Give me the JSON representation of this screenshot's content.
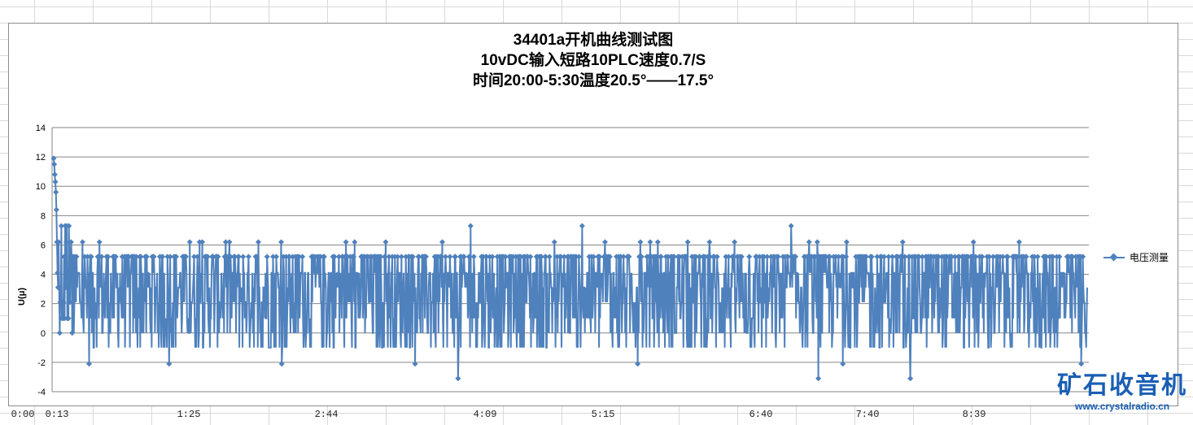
{
  "chart_data": {
    "type": "line",
    "title_lines": [
      "34401a开机曲线测试图",
      "10vDC输入短路10PLC速度0.7/S",
      "时间20:00-5:30温度20.5°——17.5°"
    ],
    "ylabel": "U(μ)",
    "xlabel": "",
    "ylim": [
      -4,
      14
    ],
    "yticks": [
      "14",
      "12",
      "10",
      "8",
      "6",
      "4",
      "2",
      "0",
      "-2",
      "-4"
    ],
    "xtick_labels": [
      "0:00",
      "0:13",
      "1:25",
      "2:44",
      "4:09",
      "5:15",
      "6:40",
      "7:40",
      "8:39"
    ],
    "grid": "horizontal",
    "legend": "right",
    "series": [
      {
        "name": "电压测量",
        "color": "#4f81bd",
        "description_values": {
          "start_peak": 11.9,
          "typical_low": -1,
          "typical_high": 5.2,
          "occasional_min": -3.1,
          "occasional_max": 7.3
        }
      }
    ]
  },
  "watermark": {
    "main": "矿石收音机",
    "sub": "www.crystalradio.cn"
  }
}
